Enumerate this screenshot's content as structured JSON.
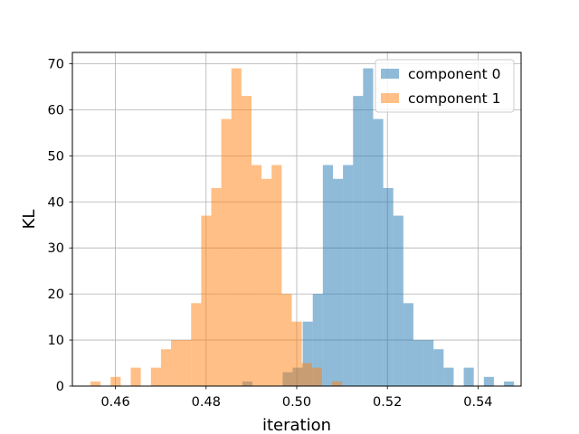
{
  "chart_data": {
    "type": "histogram",
    "title": "",
    "xlabel": "iteration",
    "ylabel": "KL",
    "xlim": [
      0.4505,
      0.5495
    ],
    "ylim": [
      0,
      72.45
    ],
    "xticks": [
      0.46,
      0.48,
      0.5,
      0.52,
      0.54
    ],
    "xtick_labels": [
      "0.46",
      "0.48",
      "0.50",
      "0.52",
      "0.54"
    ],
    "yticks": [
      0,
      10,
      20,
      30,
      40,
      50,
      60,
      70
    ],
    "ytick_labels": [
      "0",
      "10",
      "20",
      "30",
      "40",
      "50",
      "60",
      "70"
    ],
    "grid": true,
    "legend_position": "top-right",
    "series": [
      {
        "name": "component 0",
        "color": "#1f77b4",
        "alpha": 0.5,
        "bin_start": 0.488,
        "bin_width": 0.00222,
        "counts": [
          1,
          0,
          0,
          0,
          3,
          4,
          14,
          20,
          48,
          45,
          48,
          63,
          69,
          58,
          43,
          37,
          18,
          10,
          10,
          8,
          4,
          0,
          4,
          0,
          2,
          0,
          1
        ]
      },
      {
        "name": "component 1",
        "color": "#ff7f0e",
        "alpha": 0.5,
        "bin_start": 0.4545,
        "bin_width": 0.00222,
        "counts": [
          1,
          0,
          2,
          0,
          4,
          0,
          4,
          8,
          10,
          10,
          18,
          37,
          43,
          58,
          69,
          63,
          48,
          45,
          48,
          20,
          14,
          5,
          4,
          0,
          1
        ]
      }
    ],
    "legend": {
      "entries": [
        "component 0",
        "component 1"
      ]
    }
  }
}
